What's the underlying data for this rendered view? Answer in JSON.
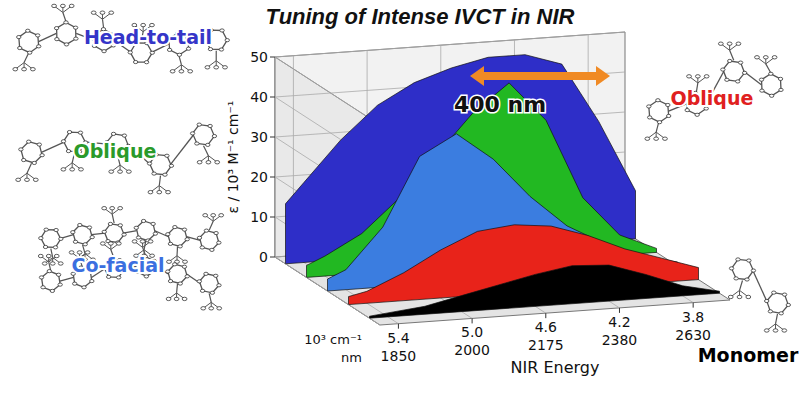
{
  "chart_data": {
    "type": "area",
    "title": "Tuning of Intense IVCT in NIR",
    "ylabel": "ε / 10³ M⁻¹ cm⁻¹",
    "xlabel": "NIR Energy",
    "xunit": "10³ cm⁻¹",
    "x2unit": "nm",
    "x": [
      5.5,
      5.4,
      5.2,
      5.0,
      4.8,
      4.6,
      4.4,
      4.2,
      4.0,
      3.8,
      3.6
    ],
    "xlim": [
      5.5,
      3.6
    ],
    "xticks": [
      5.4,
      {
        "value": 5,
        "label": "5.0"
      },
      4.6,
      4.2,
      3.8
    ],
    "x2ticks": [
      {
        "value": 5.4,
        "label": "1850"
      },
      {
        "value": 5,
        "label": "2000"
      },
      {
        "value": 4.6,
        "label": "2175"
      },
      {
        "value": 4.2,
        "label": "2380"
      },
      {
        "value": 3.8,
        "label": "2630"
      }
    ],
    "ylim": [
      0,
      50
    ],
    "yticks": [
      0,
      10,
      20,
      30,
      40,
      50
    ],
    "grid": true,
    "series": [
      {
        "name": "Monomer",
        "color": "#000000",
        "values": [
          0.5,
          1,
          2,
          4,
          6,
          8,
          9.5,
          9,
          6,
          2.5,
          0.5
        ]
      },
      {
        "name": "Oblique",
        "color": "#e8231a",
        "values": [
          2,
          3,
          7,
          12,
          16,
          17,
          16,
          13,
          9,
          6,
          3
        ]
      },
      {
        "name": "Co-facial",
        "color": "#3b7de0",
        "values": [
          3,
          5,
          15,
          32,
          37,
          30,
          20,
          12,
          7,
          3,
          1
        ]
      },
      {
        "name": "Oblique",
        "color": "#22b822",
        "values": [
          3,
          5,
          10,
          18,
          28,
          38,
          45,
          35,
          15,
          5,
          1
        ]
      },
      {
        "name": "Head-to-tail",
        "color": "#2e2ec8",
        "values": [
          15,
          20,
          30,
          38,
          43,
          46,
          48,
          48,
          45,
          30,
          12
        ]
      }
    ],
    "annotations": [
      {
        "text": "400 nm"
      }
    ]
  }
}
